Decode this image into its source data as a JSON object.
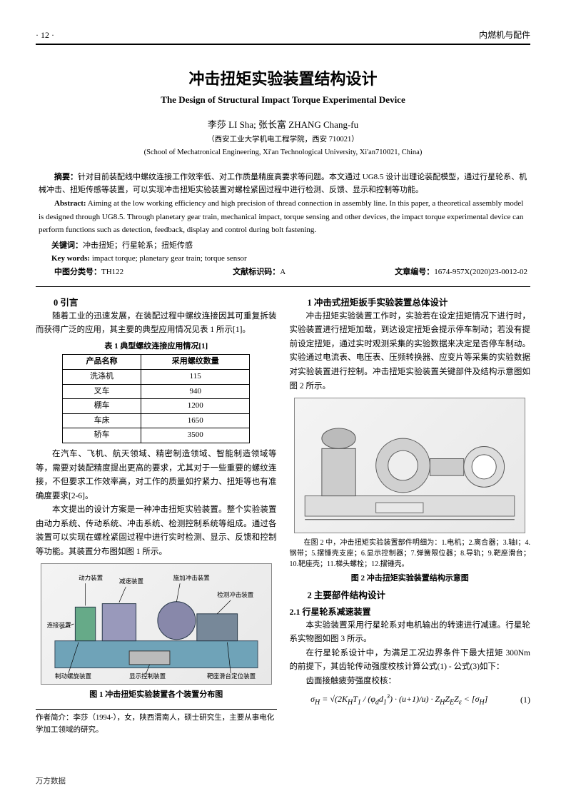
{
  "header": {
    "page_num": "· 12 ·",
    "journal": "内燃机与配件"
  },
  "title": {
    "cn": "冲击扭矩实验装置结构设计",
    "en": "The Design of Structural Impact Torque Experimental Device"
  },
  "authors": "李莎 LI Sha; 张长富 ZHANG Chang-fu",
  "affiliation": {
    "cn": "（西安工业大学机电工程学院，西安 710021）",
    "en": "(School of Mechatronical Engineering, Xi'an Technological University, Xi'an710021, China)"
  },
  "abstract": {
    "cn_label": "摘要：",
    "cn": "针对目前装配线中螺纹连接工作效率低、对工作质量精度高要求等问题。本文通过 UG8.5 设计出理论装配模型，通过行星轮系、机械冲击、扭矩传感等装置，可以实现冲击扭矩实验装置对螺栓紧固过程中进行检测、反馈、显示和控制等功能。",
    "en_label": "Abstract:",
    "en": " Aiming at the low working efficiency and high precision of thread connection in assembly line. In this paper, a theoretical assembly model is designed through UG8.5. Through planetary gear train, mechanical impact, torque sensing and other devices, the impact torque experimental device can perform functions such as detection, feedback, display and control during bolt fastening."
  },
  "keywords": {
    "cn_label": "关键词：",
    "cn": "冲击扭矩；行星轮系；扭矩传感",
    "en_label": "Key words:",
    "en": " impact torque; planetary gear train; torque sensor"
  },
  "classinfo": {
    "clc_label": "中图分类号：",
    "clc": "TH122",
    "doc_label": "文献标识码：",
    "doc": "A",
    "artno_label": "文章编号：",
    "artno": "1674-957X(2020)23-0012-02"
  },
  "sec0": {
    "head": "0 引言",
    "p1": "随着工业的迅速发展，在装配过程中螺纹连接因其可重复拆装而获得广泛的应用，其主要的典型应用情况见表 1 所示[1]。",
    "tbl_cap": "表 1  典型螺纹连接应用情况[1]",
    "col1": "产品名称",
    "col2": "采用螺纹数量",
    "rows": [
      [
        "洗涤机",
        "115"
      ],
      [
        "叉车",
        "940"
      ],
      [
        "棚车",
        "1200"
      ],
      [
        "车床",
        "1650"
      ],
      [
        "轿车",
        "3500"
      ]
    ],
    "p2": "在汽车、飞机、航天领域、精密制造领域、智能制造领域等等，需要对装配精度提出更高的要求，尤其对于一些重要的螺纹连接，不但要求工作效率高，对工作的质量如拧紧力、扭矩等也有准确度要求[2-6]。",
    "p3": "本文提出的设计方案是一种冲击扭矩实验装置。整个实验装置由动力系统、传动系统、冲击系统、检测控制系统等组成。通过各装置可以实现在螺栓紧固过程中进行实时检测、显示、反馈和控制等功能。其装置分布图如图 1 所示。",
    "fig1_cap": "图 1  冲击扭矩实验装置各个装置分布图",
    "fig1_labels": [
      "动力装置",
      "减速装置",
      "施加冲击装置",
      "连接装置",
      "检测冲击装置",
      "靶座滑台定位装置",
      "制动螺旋装置",
      "显示控制装置"
    ]
  },
  "sec1": {
    "head": "1 冲击式扭矩扳手实验装置总体设计",
    "p1": "冲击扭矩实验装置工作时，实验若在设定扭矩情况下进行时，实验装置进行扭矩加载，到达设定扭矩会提示停车制动；若没有提前设定扭矩，通过实时观测采集的实验数据来决定是否停车制动。实验通过电流表、电压表、压频转换器、应变片等采集的实验数据对实验装置进行控制。冲击扭矩实验装置关键部件及结构示意图如图 2 所示。",
    "fig2_note": "在图 2 中，冲击扭矩实验装置部件明细为：1.电机；2.离合器；3.轴Ⅰ；4.钢带；5.摆锤壳支座；6.显示控制器；7.弹簧限位器；8.导轨；9.靶座滑台；10.靶座壳；11.梯头螺栓；12.摆锤壳。",
    "fig2_cap": "图 2  冲击扭矩实验装置结构示意图"
  },
  "sec2": {
    "head": "2 主要部件结构设计",
    "sub21": "2.1 行星轮系减速装置",
    "p1": "本实验装置采用行星轮系对电机输出的转速进行减速。行星轮系实物图如图 3 所示。",
    "p2": "在行星轮系设计中，为满足工况边界条件下最大扭矩 300Nm 的前提下，其齿轮传动强度校核计算公式(1) - 公式(3)如下：",
    "f_intro": "齿面接触疲劳强度校核：",
    "formula1": "σ<sub>H</sub> = √(2K<sub>H</sub>T<sub>1</sub> / (φ<sub>d</sub>d<sub>1</sub><sup>3</sup>) · (u+1)/u) · Z<sub>H</sub>Z<sub>E</sub>Z<sub>ε</sub> < [σ<sub>H</sub>]",
    "formula1_num": "(1)"
  },
  "author_bio": "作者简介：李莎（1994-），女，陕西渭南人，硕士研究生，主要从事电化学加工领域的研究。",
  "footer": "万方数据"
}
